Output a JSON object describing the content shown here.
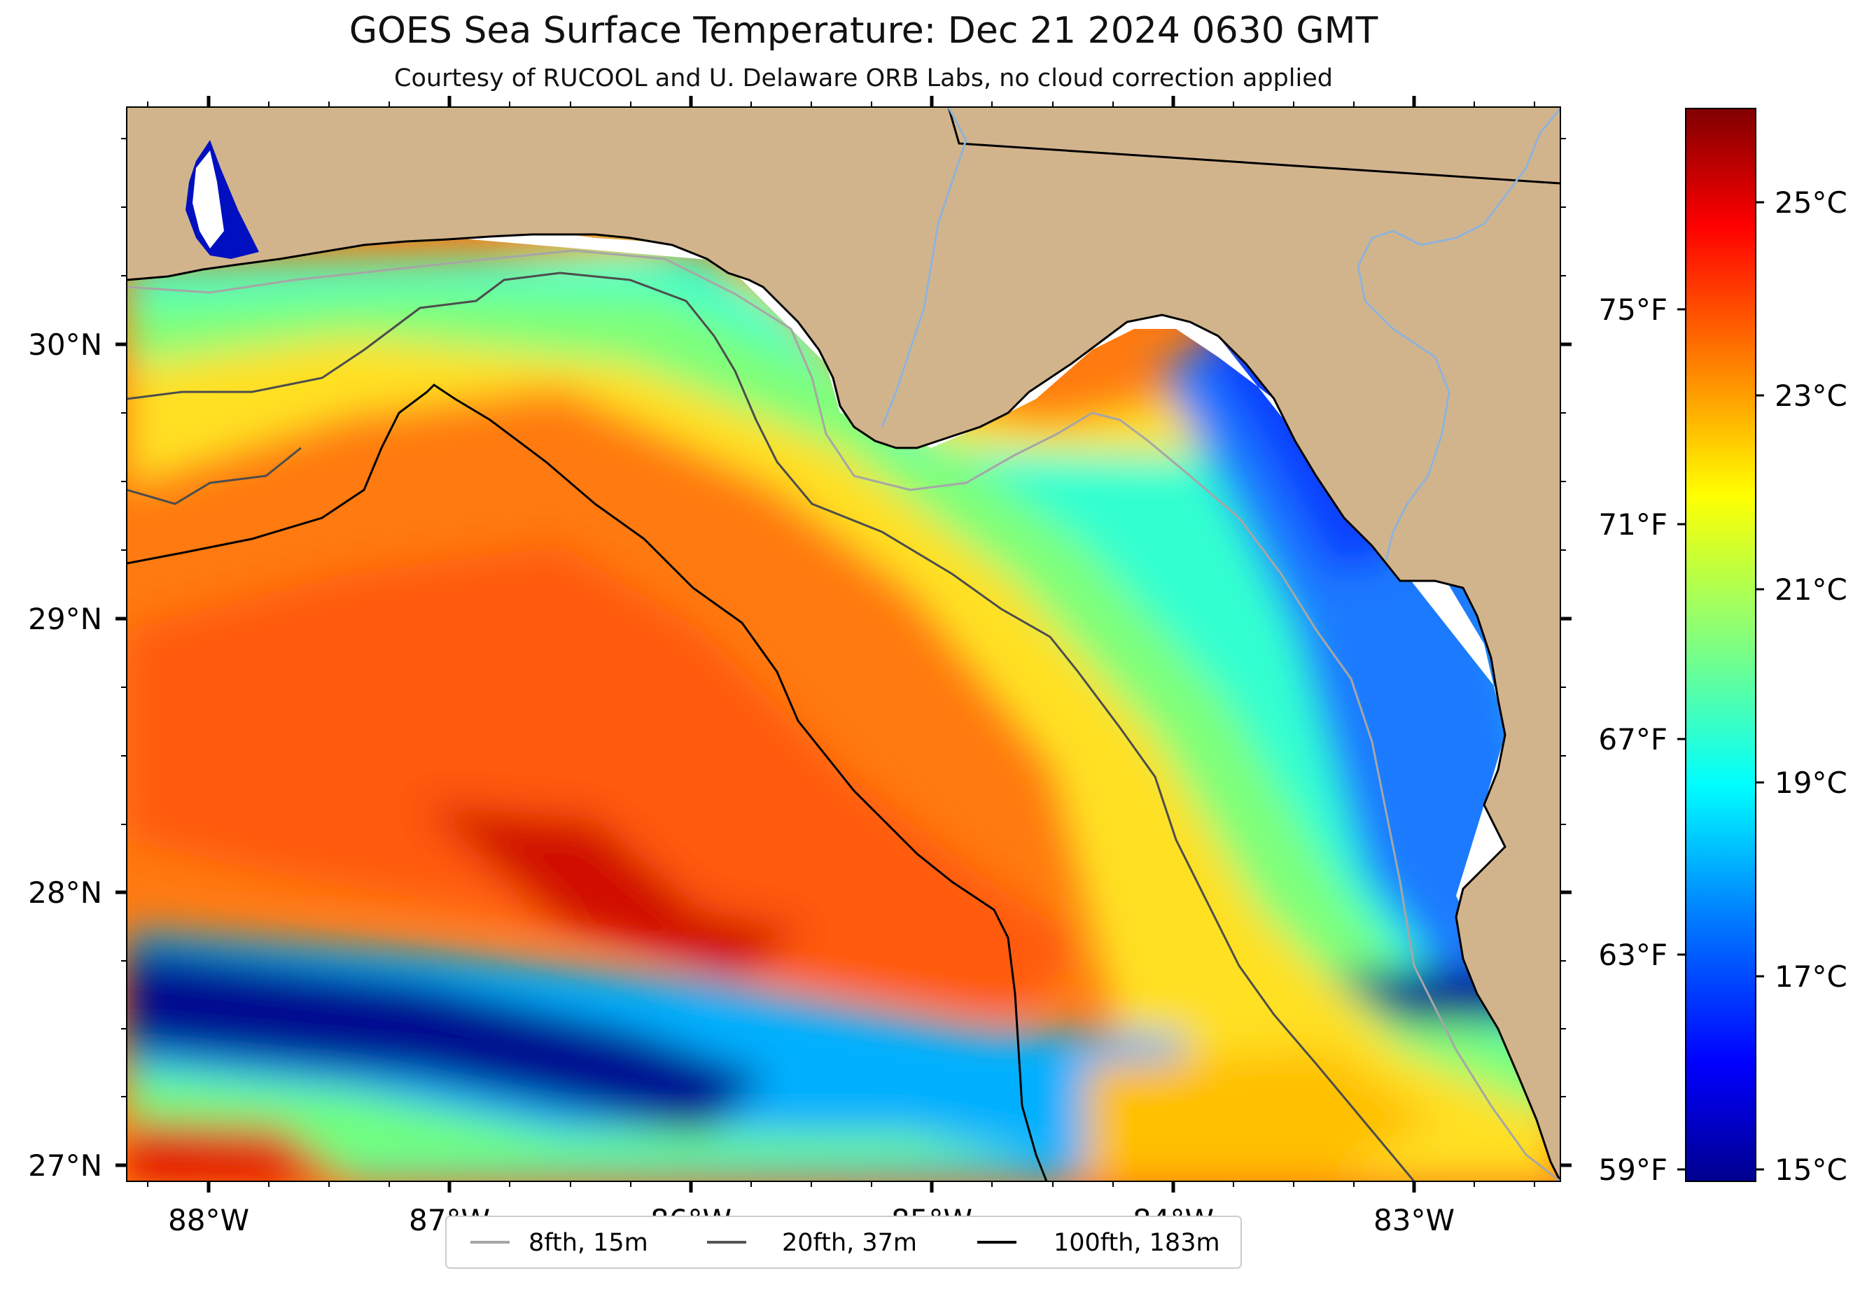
{
  "title": "GOES Sea Surface Temperature: Dec 21 2024 0630 GMT",
  "subtitle": "Courtesy of RUCOOL and U. Delaware ORB Labs, no cloud correction applied",
  "map": {
    "lon_ticks": [
      "88°W",
      "87°W",
      "86°W",
      "85°W",
      "84°W",
      "83°W"
    ],
    "lat_ticks": [
      "30°N",
      "29°N",
      "28°N",
      "27°N"
    ],
    "colors": {
      "land": "#D2B48C",
      "coast": "#000000",
      "rivers": "#8fb3d9",
      "uncovered_water": "#ffffff"
    }
  },
  "colorbar": {
    "celsius_ticks": [
      "25°C",
      "23°C",
      "21°C",
      "19°C",
      "17°C",
      "15°C"
    ],
    "fahrenheit_ticks": [
      "75°F",
      "71°F",
      "67°F",
      "63°F",
      "59°F"
    ],
    "colormap": "jet",
    "min_c": 14.8,
    "max_c": 26.0
  },
  "legend": {
    "items": [
      {
        "label": "8fth, 15m",
        "color": "#a6a6a6"
      },
      {
        "label": "20fth, 37m",
        "color": "#555555"
      },
      {
        "label": "100fth, 183m",
        "color": "#000000"
      }
    ]
  }
}
